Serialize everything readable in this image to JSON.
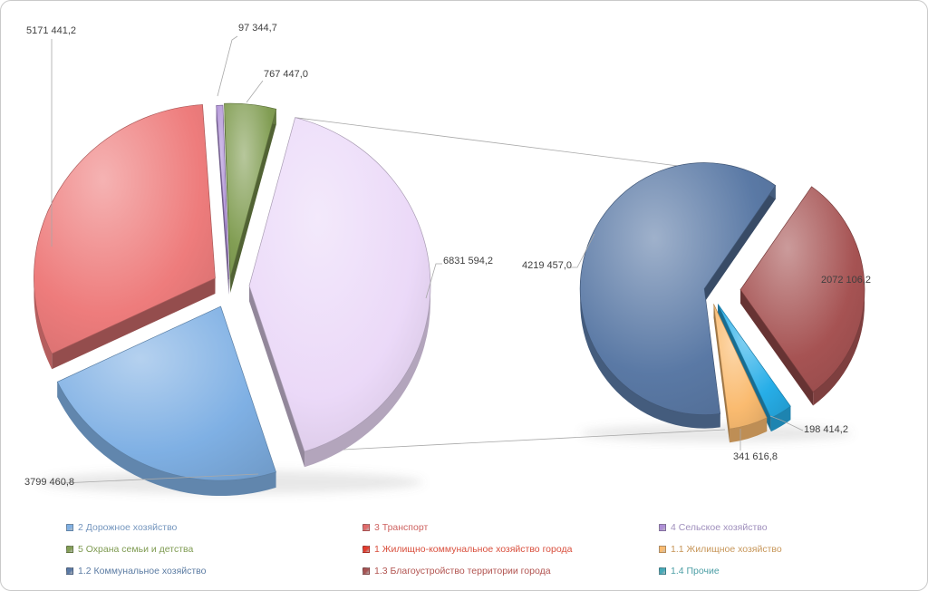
{
  "chart": {
    "background": "#FFFFFF",
    "border_color": "#C9C9C9",
    "label_color": "#3F3F3F",
    "connector_color": "#A8A8A8"
  },
  "chart_data": {
    "type": "pie",
    "subtype": "3d-exploded-pie-of-pie",
    "title": "",
    "legend_position": "bottom",
    "main_pie": {
      "slices": [
        {
          "id": "selskoe-hozyajstvo",
          "label": "4 Сельское хозяйство",
          "value": 97344.7,
          "display": "97 344,7",
          "color": "#AE8FD6"
        },
        {
          "id": "ohrana-semi-detstva",
          "label": "5 Охрана семьи и детства",
          "value": 767447.0,
          "display": "767 447,0",
          "color": "#829E54"
        },
        {
          "id": "zhkh-goroda",
          "label": "1 Жилищно-коммунальное хозяйство города",
          "value": 6831594.2,
          "display": "6831 594,2",
          "color": "#EBD9F8"
        },
        {
          "id": "dorozhnoe-hozyajstvo",
          "label": "2 Дорожное хозяйство",
          "value": 3799460.8,
          "display": "3799 460,8",
          "color": "#7FB0E4"
        },
        {
          "id": "transport",
          "label": "3 Транспорт",
          "value": 5171441.2,
          "display": "5171 441,2",
          "color": "#EE7C7C"
        }
      ]
    },
    "secondary_pie": {
      "slices": [
        {
          "id": "blagoustrojstvo",
          "label": "1.3 Благоустройство территории города",
          "value": 2072106.2,
          "display": "2072 106,2",
          "color": "#A65353"
        },
        {
          "id": "prochie",
          "label": "1.4 Прочие",
          "value": 198414.2,
          "display": "198 414,2",
          "color": "#27AEE8"
        },
        {
          "id": "zhilishchnoe",
          "label": "1.1 Жилищное хозяйство",
          "value": 341616.8,
          "display": "341 616,8",
          "color": "#FABB70"
        },
        {
          "id": "kommunalnoe",
          "label": "1.2 Коммунальное хозяйство",
          "value": 4219457.0,
          "display": "4219 457,0",
          "color": "#5A79A5"
        }
      ]
    }
  },
  "legend": {
    "items": [
      {
        "label": "2 Дорожное хозяйство",
        "color": "#7FB0E4",
        "text_color": "#7596BE"
      },
      {
        "label": "3 Транспорт",
        "color": "#E06A6A",
        "text_color": "#CE6361"
      },
      {
        "label": "4 Сельское хозяйство",
        "color": "#AE8FD6",
        "text_color": "#9F8FBC"
      },
      {
        "label": "5 Охрана семьи и детства",
        "color": "#829E54",
        "text_color": "#7F9B52"
      },
      {
        "label": "1 Жилищно-коммунальное хозяйство города",
        "color": "#E23B2E",
        "text_color": "#D94F3D"
      },
      {
        "label": "1.1 Жилищное хозяйство",
        "color": "#FABB70",
        "text_color": "#C79659"
      },
      {
        "label": "1.2 Коммунальное хозяйство",
        "color": "#5A79A5",
        "text_color": "#5C7CA3"
      },
      {
        "label": "1.3 Благоустройство территории города",
        "color": "#A65353",
        "text_color": "#B25450"
      },
      {
        "label": "1.4 Прочие",
        "color": "#45A9B8",
        "text_color": "#4D9FA6"
      }
    ]
  }
}
